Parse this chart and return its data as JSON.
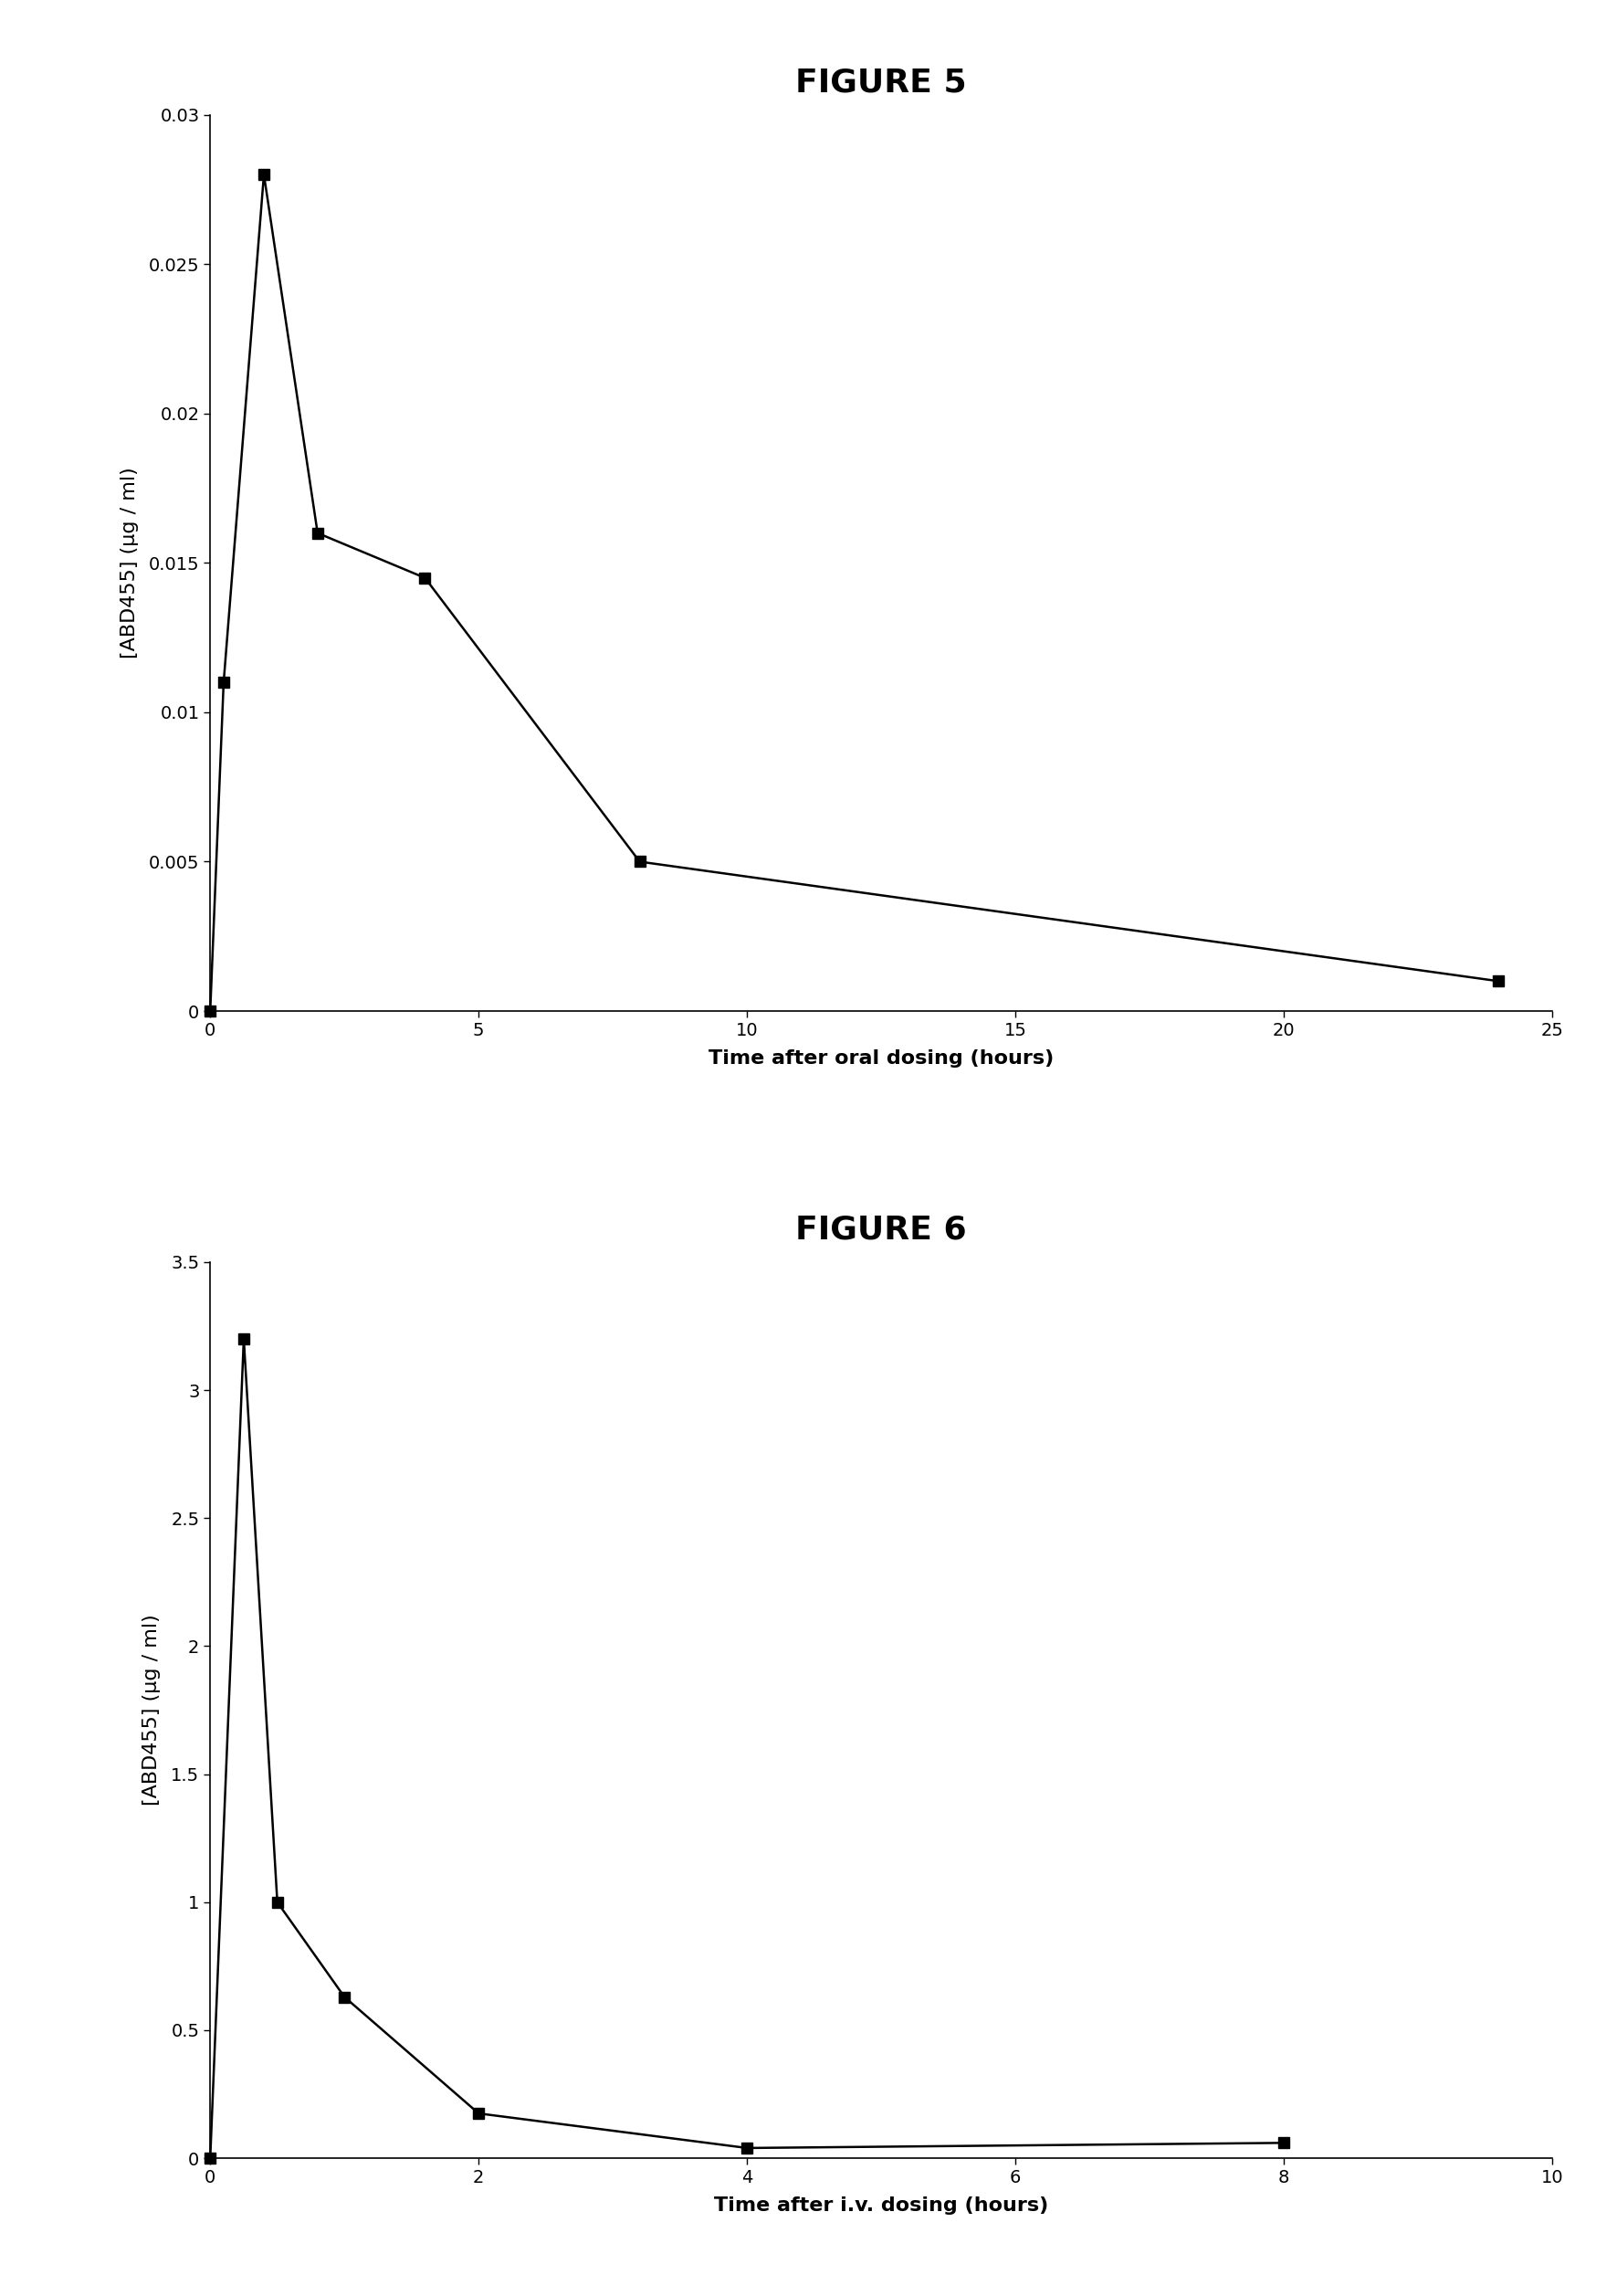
{
  "fig5": {
    "title": "FIGURE 5",
    "x": [
      0,
      0.25,
      1,
      2,
      4,
      8,
      24
    ],
    "y": [
      0.0,
      0.011,
      0.028,
      0.016,
      0.0145,
      0.005,
      0.001
    ],
    "xlabel": "Time after oral dosing (hours)",
    "ylabel": "[ABD455] (μg / ml)",
    "xlim": [
      0,
      25
    ],
    "ylim": [
      0,
      0.03
    ],
    "xticks": [
      0,
      5,
      10,
      15,
      20,
      25
    ],
    "yticks": [
      0,
      0.005,
      0.01,
      0.015,
      0.02,
      0.025,
      0.03
    ]
  },
  "fig6": {
    "title": "FIGURE 6",
    "x": [
      0,
      0.25,
      0.5,
      1,
      2,
      4,
      8
    ],
    "y": [
      0.0,
      3.2,
      1.0,
      0.63,
      0.175,
      0.04,
      0.06
    ],
    "xlabel": "Time after i.v. dosing (hours)",
    "ylabel": "[ABD455] (μg / ml)",
    "xlim": [
      0,
      10
    ],
    "ylim": [
      0,
      3.5
    ],
    "xticks": [
      0,
      2,
      4,
      6,
      8,
      10
    ],
    "yticks": [
      0,
      0.5,
      1.0,
      1.5,
      2.0,
      2.5,
      3.0,
      3.5
    ]
  },
  "marker": "s",
  "marker_size": 9,
  "line_color": "#000000",
  "line_width": 1.8,
  "title_fontsize": 26,
  "label_fontsize": 16,
  "tick_fontsize": 14,
  "background_color": "#ffffff"
}
